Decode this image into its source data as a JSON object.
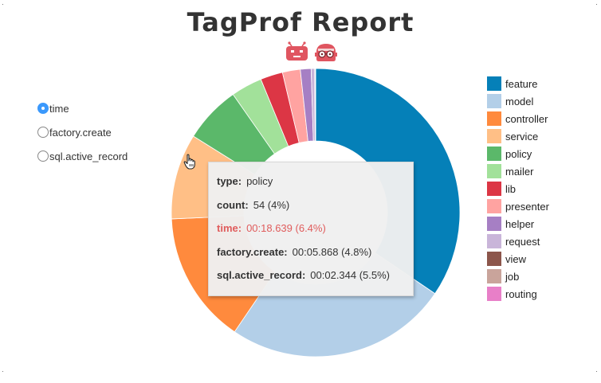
{
  "header": {
    "title": "TagProf Report"
  },
  "metric_selector": {
    "options": [
      {
        "label": "time",
        "checked": true
      },
      {
        "label": "factory.create",
        "checked": false
      },
      {
        "label": "sql.active_record",
        "checked": false
      }
    ]
  },
  "colors": {
    "logo_red": "#e05560",
    "tooltip_highlight": "#e05c5c",
    "radio_accent": "#3b99fc"
  },
  "chart_data": {
    "type": "pie",
    "variant": "donut",
    "metric": "time",
    "legend_position": "right",
    "categories": [
      "feature",
      "model",
      "controller",
      "service",
      "policy",
      "mailer",
      "lib",
      "presenter",
      "helper",
      "request",
      "view",
      "job",
      "routing"
    ],
    "values": [
      34.5,
      25.0,
      14.8,
      9.6,
      6.4,
      3.5,
      2.5,
      2.0,
      1.2,
      0.4,
      0.07,
      0.02,
      0.01
    ],
    "colors": [
      "#0580b8",
      "#b3cfe8",
      "#ff8a3d",
      "#ffbf86",
      "#5bb86a",
      "#a2e19a",
      "#dc3645",
      "#ffa3a1",
      "#a67fc4",
      "#c9b5d9",
      "#8c564b",
      "#c9a49b",
      "#e87fc8"
    ],
    "tooltip": {
      "rows": [
        {
          "key": "type:",
          "value": "policy",
          "highlight": false
        },
        {
          "key": "count:",
          "value": "54 (4%)",
          "highlight": false
        },
        {
          "key": "time:",
          "value": "00:18.639 (6.4%)",
          "highlight": true
        },
        {
          "key": "factory.create:",
          "value": "00:05.868 (4.8%)",
          "highlight": false
        },
        {
          "key": "sql.active_record:",
          "value": "00:02.344 (5.5%)",
          "highlight": false
        }
      ]
    }
  }
}
